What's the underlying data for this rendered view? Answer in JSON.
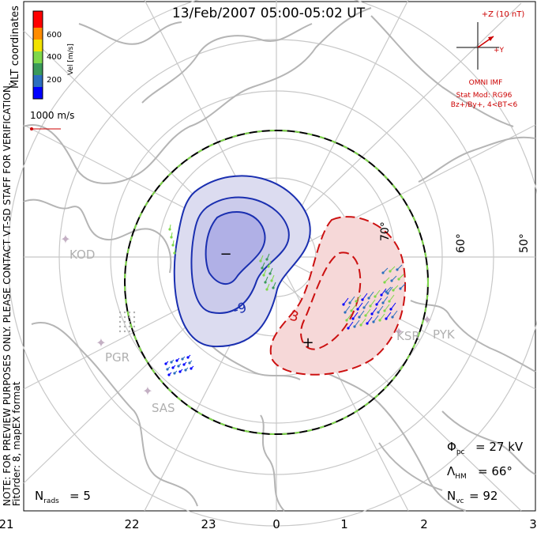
{
  "title": "13/Feb/2007 05:00-05:02 UT",
  "coordinates_label": "MLT coordinates",
  "velocity_scale": {
    "unit_label": "Vel [m/s]",
    "ticks": [
      "200",
      "400",
      "600"
    ],
    "colors": [
      "#0000ff",
      "#2c6fbf",
      "#3a9a5a",
      "#7fd84a",
      "#f2e200",
      "#ff8c00",
      "#ff0000"
    ]
  },
  "reference_vector": "1000 m/s",
  "imf": {
    "title": "+Z (10 nT)",
    "y_label": "+Y",
    "source": "OMNI IMF",
    "model_line1": "Stat Mod: RG96",
    "model_line2": "Bz+/By+, 4<BT<6"
  },
  "stats": {
    "phi_pc": "27 kV",
    "lambda_hm": "66°",
    "n_vc": "92",
    "n_rads": "5"
  },
  "notice": "NOTE: FOR PREVIEW PURPOSES ONLY. PLEASE CONTACT VT-SD STAFF FOR VERIFICATION.",
  "fit_order": "FitOrder: 8, mapEX format",
  "latitude_labels": [
    "70°",
    "60°",
    "50°"
  ],
  "contour_labels": [
    "-9",
    "3"
  ],
  "extremum_labels": [
    "−",
    "+"
  ],
  "radars": [
    "KOD",
    "PGR",
    "SAS",
    "KSR",
    "PYK"
  ],
  "mlt_ticks": [
    "21",
    "22",
    "23",
    "0",
    "1",
    "2",
    "3"
  ],
  "colors": {
    "grid": "#c8c8c8",
    "land": "#b5b5b5",
    "negative_fill": "#dcdcf0",
    "negative_core": "#b0b0e6",
    "negative_line": "#1a2fb0",
    "positive_fill": "#f6d8d8",
    "positive_line": "#cc1111",
    "hmb_dash": "#7fd84a",
    "annot": "#cc0000"
  }
}
